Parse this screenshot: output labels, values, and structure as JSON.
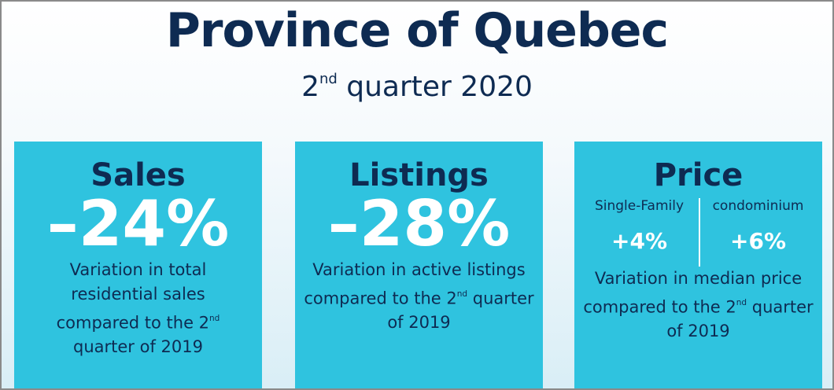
{
  "header": {
    "title": "Province of Quebec",
    "subtitle": {
      "number": "2",
      "sup": "nd",
      "rest": " quarter 2020"
    }
  },
  "cards": [
    {
      "title": "Sales",
      "value": "–24%",
      "description": {
        "before": "Variation in total residential sales compared to the 2",
        "sup": "nd",
        "after": " quarter of 2019"
      }
    },
    {
      "title": "Listings",
      "value": "–28%",
      "description": {
        "before": "Variation in active listings compared to the 2",
        "sup": "nd",
        "after": " quarter of 2019"
      }
    },
    {
      "title": "Price",
      "items": [
        {
          "label": "Single-Family",
          "value": "+4%"
        },
        {
          "label": "condominium",
          "value": "+6%"
        }
      ],
      "description": {
        "before": "Variation in median price compared to the 2",
        "sup": "nd",
        "after": " quarter of 2019"
      }
    }
  ]
}
